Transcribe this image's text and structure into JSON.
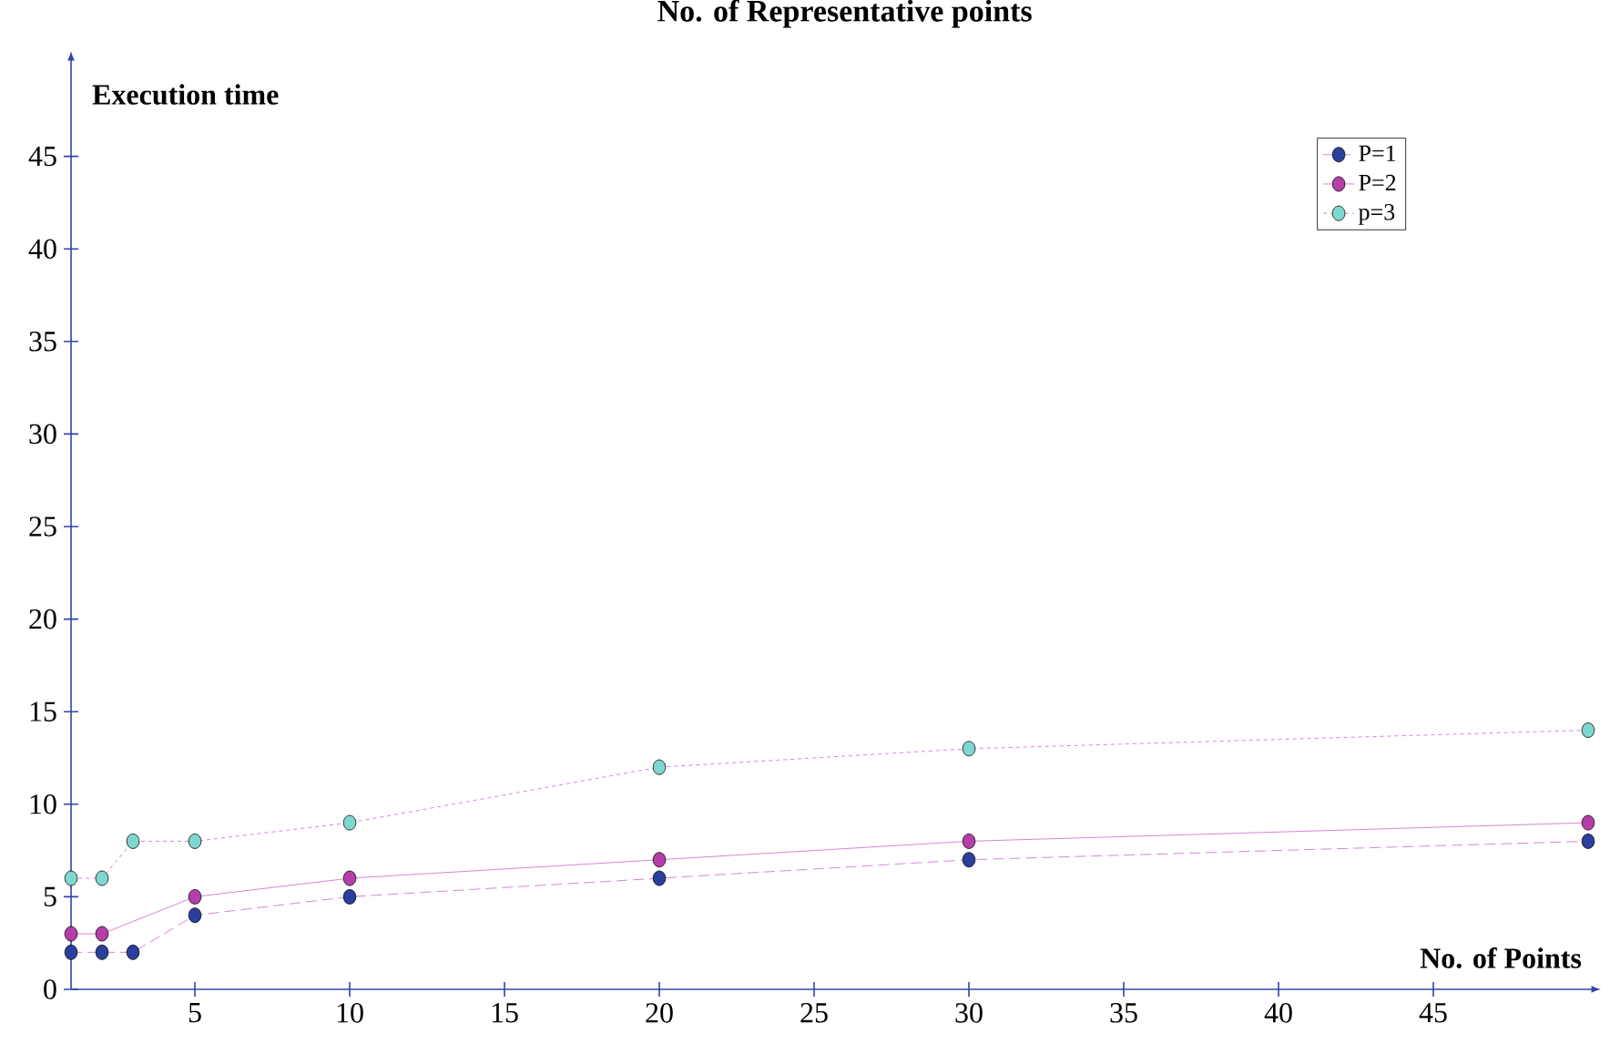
{
  "chart_data": {
    "type": "line",
    "title": "No. of Representative points",
    "xlabel": "No. of  Points",
    "ylabel": "Execution time",
    "xlim": [
      1,
      50
    ],
    "ylim": [
      0,
      50
    ],
    "xticks": [
      5,
      10,
      15,
      20,
      25,
      30,
      35,
      40,
      45
    ],
    "yticks": [
      0,
      5,
      10,
      15,
      20,
      25,
      30,
      35,
      40,
      45
    ],
    "legend": "top right",
    "marker": "circle",
    "grid": false,
    "series": [
      {
        "name": "P=1",
        "color": "#2b3f9c",
        "line_style": "dashed",
        "x": [
          1,
          2,
          3,
          5,
          10,
          20,
          30,
          50
        ],
        "values": [
          2,
          2,
          2,
          4,
          5,
          6,
          7,
          8
        ]
      },
      {
        "name": "P=2",
        "color": "#b53fa8",
        "line_style": "solid",
        "x": [
          1,
          2,
          5,
          10,
          20,
          30,
          50
        ],
        "values": [
          3,
          3,
          5,
          6,
          7,
          8,
          9
        ]
      },
      {
        "name": "p=3",
        "color": "#7fd8d0",
        "line_style": "dotted",
        "x": [
          1,
          2,
          3,
          5,
          10,
          20,
          30,
          50
        ],
        "values": [
          6,
          6,
          8,
          8,
          9,
          12,
          13,
          14
        ]
      }
    ]
  }
}
